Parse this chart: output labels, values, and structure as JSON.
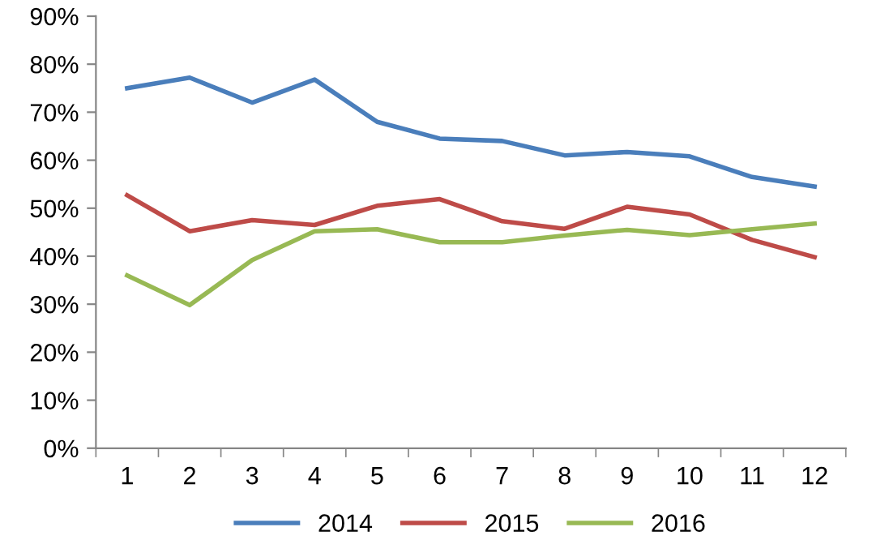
{
  "chart_data": {
    "type": "line",
    "categories": [
      "1",
      "2",
      "3",
      "4",
      "5",
      "6",
      "7",
      "8",
      "9",
      "10",
      "11",
      "12"
    ],
    "series": [
      {
        "name": "2014",
        "color": "#4a7ebb",
        "values": [
          75,
          77.2,
          72,
          76.8,
          68,
          64.5,
          64,
          61,
          61.7,
          60.8,
          56.5,
          54.5
        ]
      },
      {
        "name": "2015",
        "color": "#be4b48",
        "values": [
          52.7,
          45.2,
          47.5,
          46.5,
          50.5,
          51.9,
          47.3,
          45.7,
          50.3,
          48.7,
          43.4,
          39.8
        ]
      },
      {
        "name": "2016",
        "color": "#98b954",
        "values": [
          36,
          29.8,
          39.2,
          45.2,
          45.6,
          42.9,
          42.9,
          44.3,
          45.5,
          44.4,
          45.6,
          46.8
        ]
      }
    ],
    "ylim": [
      0,
      90
    ],
    "yticks": [
      {
        "value": 0,
        "label": "0%"
      },
      {
        "value": 10,
        "label": "10%"
      },
      {
        "value": 20,
        "label": "20%"
      },
      {
        "value": 30,
        "label": "30%"
      },
      {
        "value": 40,
        "label": "40%"
      },
      {
        "value": 50,
        "label": "50%"
      },
      {
        "value": 60,
        "label": "60%"
      },
      {
        "value": 70,
        "label": "70%"
      },
      {
        "value": 80,
        "label": "80%"
      },
      {
        "value": 90,
        "label": "90%"
      }
    ],
    "grid": false,
    "legend": "bottom",
    "marker": "none",
    "line_style": "solid"
  }
}
